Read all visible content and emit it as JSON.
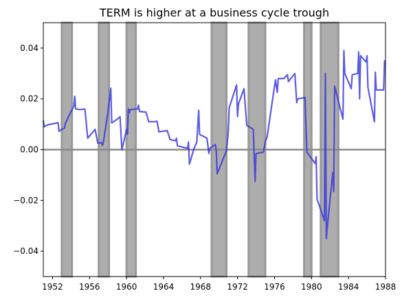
{
  "chart_data": {
    "type": "line",
    "title": "TERM is higher at a business cycle trough",
    "xlabel": "",
    "ylabel": "",
    "xlim": [
      1951,
      1988
    ],
    "ylim": [
      -0.05,
      0.05
    ],
    "x_ticks": [
      1952,
      1956,
      1960,
      1964,
      1968,
      1972,
      1976,
      1980,
      1984,
      1988
    ],
    "y_ticks": [
      -0.04,
      -0.02,
      0.0,
      0.02,
      0.04
    ],
    "y_tick_labels": [
      "−0.04",
      "−0.02",
      "0.00",
      "0.02",
      "0.04"
    ],
    "grid": false,
    "zero_line": 0.0,
    "recessions": [
      {
        "start": 1953.0,
        "end": 1954.1
      },
      {
        "start": 1957.0,
        "end": 1958.1
      },
      {
        "start": 1960.0,
        "end": 1961.0
      },
      {
        "start": 1969.2,
        "end": 1970.8
      },
      {
        "start": 1973.2,
        "end": 1975.0
      },
      {
        "start": 1979.2,
        "end": 1980.0
      },
      {
        "start": 1981.0,
        "end": 1982.9
      }
    ],
    "series": [
      {
        "color": "#3232e0",
        "points": [
          [
            1951.0,
            0.0115
          ],
          [
            1951.1,
            0.009
          ],
          [
            1951.5,
            0.0098
          ],
          [
            1952.2,
            0.0103
          ],
          [
            1952.6,
            0.0106
          ],
          [
            1952.7,
            0.0072
          ],
          [
            1953.0,
            0.008
          ],
          [
            1953.3,
            0.0085
          ],
          [
            1953.4,
            0.0105
          ],
          [
            1954.0,
            0.015
          ],
          [
            1954.3,
            0.017
          ],
          [
            1954.4,
            0.021
          ],
          [
            1954.5,
            0.016
          ],
          [
            1955.0,
            0.0158
          ],
          [
            1955.5,
            0.016
          ],
          [
            1955.8,
            0.0045
          ],
          [
            1956.6,
            0.008
          ],
          [
            1956.9,
            0.0025
          ],
          [
            1957.3,
            0.0028
          ],
          [
            1957.4,
            0.0017
          ],
          [
            1957.5,
            0.003
          ],
          [
            1958.0,
            0.015
          ],
          [
            1958.3,
            0.0242
          ],
          [
            1958.4,
            0.0105
          ],
          [
            1959.0,
            0.012
          ],
          [
            1959.3,
            0.013
          ],
          [
            1959.5,
            -0.0001
          ],
          [
            1960.0,
            0.008
          ],
          [
            1960.1,
            0.006
          ],
          [
            1960.2,
            0.016
          ],
          [
            1960.3,
            0.0145
          ],
          [
            1960.4,
            0.0158
          ],
          [
            1961.2,
            0.016
          ],
          [
            1961.3,
            0.0175
          ],
          [
            1961.4,
            0.015
          ],
          [
            1962.1,
            0.0148
          ],
          [
            1962.4,
            0.011
          ],
          [
            1963.0,
            0.011
          ],
          [
            1963.3,
            0.0112
          ],
          [
            1963.5,
            0.007
          ],
          [
            1964.4,
            0.0075
          ],
          [
            1964.7,
            0.004
          ],
          [
            1965.3,
            0.0035
          ],
          [
            1965.4,
            0.0045
          ],
          [
            1965.5,
            0.0015
          ],
          [
            1966.6,
            0.0005
          ],
          [
            1966.7,
            0.003
          ],
          [
            1966.8,
            -0.0057
          ],
          [
            1967.3,
            0.0005
          ],
          [
            1967.6,
            0.003
          ],
          [
            1967.8,
            0.0155
          ],
          [
            1967.9,
            0.006
          ],
          [
            1968.7,
            0.0045
          ],
          [
            1968.9,
            -0.0015
          ],
          [
            1969.0,
            0.0005
          ],
          [
            1969.6,
            0.002
          ],
          [
            1969.7,
            -0.0005
          ],
          [
            1969.8,
            -0.0095
          ],
          [
            1970.8,
            -0.0005
          ],
          [
            1971.0,
            0.007
          ],
          [
            1971.1,
            0.0165
          ],
          [
            1971.9,
            0.0255
          ],
          [
            1972.0,
            0.013
          ],
          [
            1972.1,
            0.018
          ],
          [
            1972.7,
            0.024
          ],
          [
            1973.0,
            0.0095
          ],
          [
            1973.7,
            0.008
          ],
          [
            1973.9,
            -0.0125
          ],
          [
            1974.0,
            -0.0015
          ],
          [
            1974.8,
            -0.001
          ],
          [
            1975.0,
            0.003
          ],
          [
            1975.2,
            0.005
          ],
          [
            1976.1,
            0.0275
          ],
          [
            1976.3,
            0.0225
          ],
          [
            1976.4,
            0.028
          ],
          [
            1977.0,
            0.028
          ],
          [
            1977.4,
            0.0295
          ],
          [
            1977.5,
            0.0268
          ],
          [
            1978.2,
            0.03
          ],
          [
            1978.4,
            0.0185
          ],
          [
            1978.5,
            0.02
          ],
          [
            1979.3,
            0.0205
          ],
          [
            1979.5,
            -0.001
          ],
          [
            1980.4,
            -0.0055
          ],
          [
            1980.5,
            -0.0028
          ],
          [
            1980.6,
            -0.0195
          ],
          [
            1981.4,
            -0.028
          ],
          [
            1981.5,
            0.03
          ],
          [
            1981.6,
            -0.035
          ],
          [
            1981.8,
            -0.027
          ],
          [
            1982.3,
            -0.009
          ],
          [
            1982.4,
            -0.0165
          ],
          [
            1982.5,
            0.025
          ],
          [
            1983.4,
            0.012
          ],
          [
            1983.5,
            0.039
          ],
          [
            1983.6,
            0.03
          ],
          [
            1984.3,
            0.024
          ],
          [
            1984.4,
            0.0295
          ],
          [
            1985.0,
            0.03
          ],
          [
            1985.1,
            0.0385
          ],
          [
            1985.2,
            0.02
          ],
          [
            1985.3,
            0.037
          ],
          [
            1985.9,
            0.0345
          ],
          [
            1986.0,
            0.037
          ],
          [
            1986.1,
            0.0245
          ],
          [
            1986.8,
            0.011
          ],
          [
            1986.9,
            0.0305
          ],
          [
            1987.0,
            0.0235
          ],
          [
            1987.8,
            0.0235
          ],
          [
            1987.9,
            0.035
          ],
          [
            1988.0,
            0.034
          ]
        ]
      }
    ]
  }
}
